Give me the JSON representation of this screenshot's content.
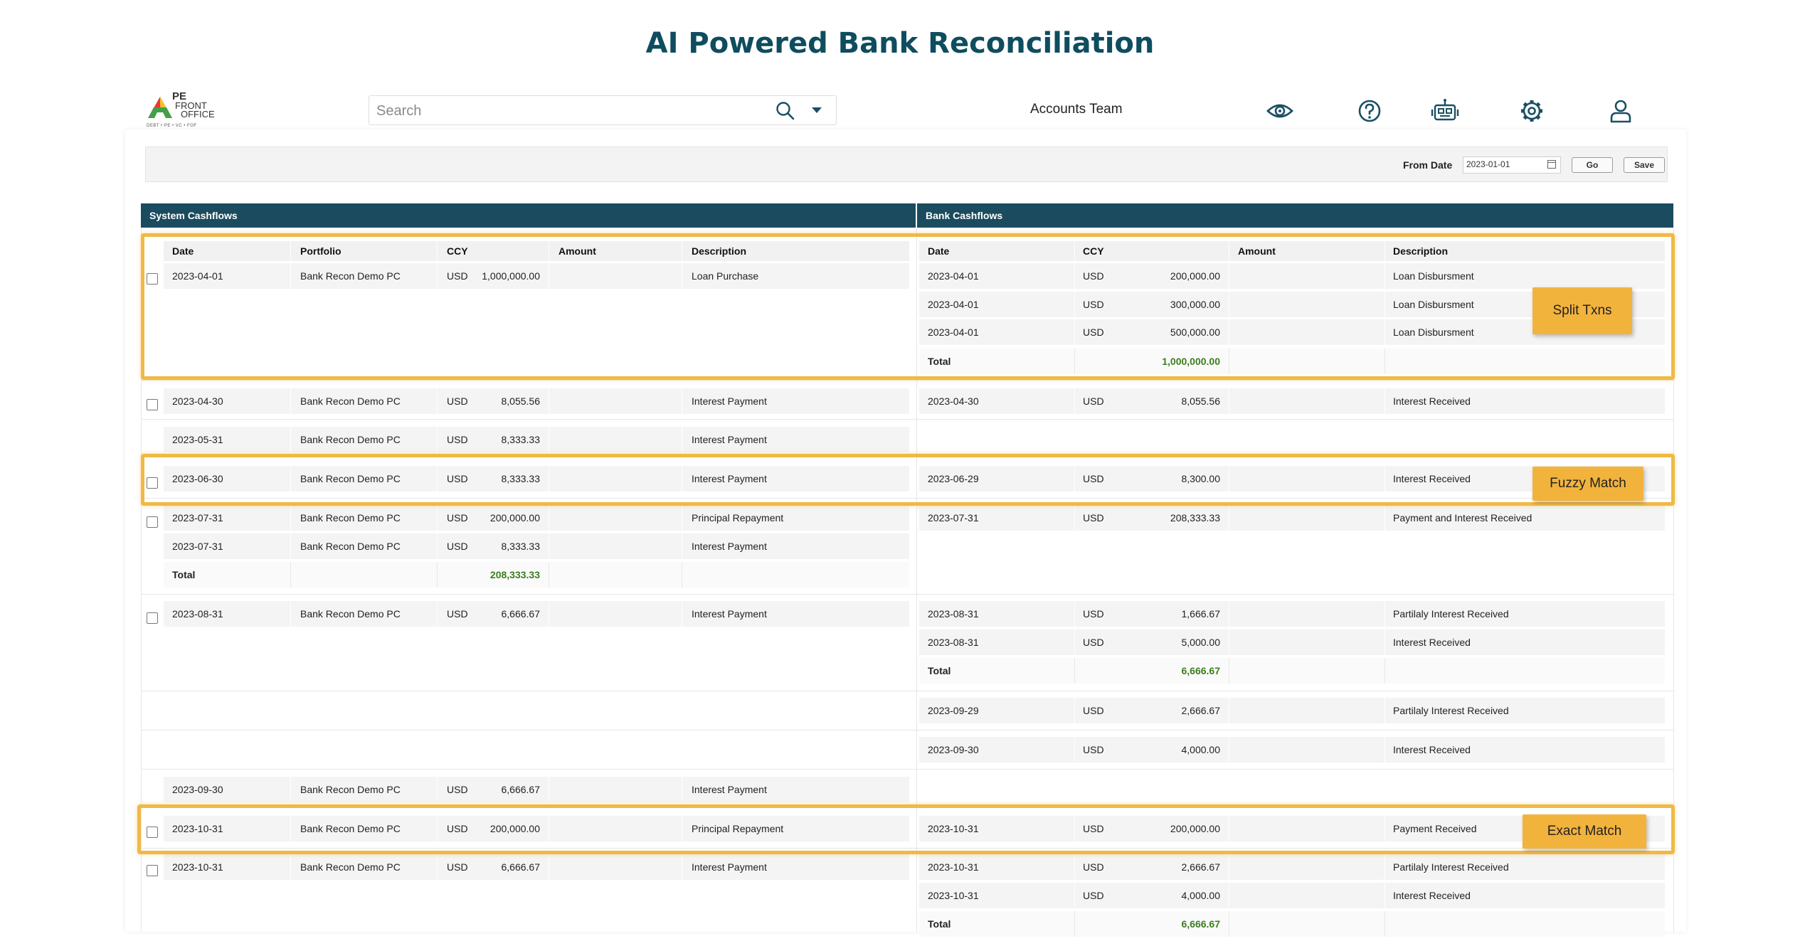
{
  "title": "AI Powered Bank Reconciliation",
  "logo": {
    "line1": "PE",
    "line2": "FRONT",
    "line3": "OFFICE",
    "tagline": "DEBT • PE • VC • FOF"
  },
  "search": {
    "placeholder": "Search"
  },
  "team": "Accounts Team",
  "toolbar": {
    "from_date_label": "From Date",
    "from_date_value": "2023-01-01",
    "go_label": "Go",
    "save_label": "Save"
  },
  "sections": {
    "system": "System Cashflows",
    "bank": "Bank Cashflows"
  },
  "system_columns": [
    "Date",
    "Portfolio",
    "CCY",
    "Amount",
    "Description"
  ],
  "bank_columns": [
    "Date",
    "CCY",
    "Amount",
    "Description"
  ],
  "system_rows": [
    {
      "date": "2023-04-01",
      "portfolio": "Bank Recon Demo PC",
      "ccy": "USD",
      "amount": "1,000,000.00",
      "desc": "Loan Purchase"
    },
    {
      "date": "2023-04-30",
      "portfolio": "Bank Recon Demo PC",
      "ccy": "USD",
      "amount": "8,055.56",
      "desc": "Interest Payment"
    },
    {
      "date": "2023-05-31",
      "portfolio": "Bank Recon Demo PC",
      "ccy": "USD",
      "amount": "8,333.33",
      "desc": "Interest Payment"
    },
    {
      "date": "2023-06-30",
      "portfolio": "Bank Recon Demo PC",
      "ccy": "USD",
      "amount": "8,333.33",
      "desc": "Interest Payment"
    },
    {
      "date": "2023-07-31",
      "portfolio": "Bank Recon Demo PC",
      "ccy": "USD",
      "amount": "200,000.00",
      "desc": "Principal Repayment"
    },
    {
      "date": "2023-07-31",
      "portfolio": "Bank Recon Demo PC",
      "ccy": "USD",
      "amount": "8,333.33",
      "desc": "Interest Payment"
    },
    {
      "date": "2023-08-31",
      "portfolio": "Bank Recon Demo PC",
      "ccy": "USD",
      "amount": "6,666.67",
      "desc": "Interest Payment"
    },
    {
      "date": "2023-09-30",
      "portfolio": "Bank Recon Demo PC",
      "ccy": "USD",
      "amount": "6,666.67",
      "desc": "Interest Payment"
    },
    {
      "date": "2023-10-31",
      "portfolio": "Bank Recon Demo PC",
      "ccy": "USD",
      "amount": "200,000.00",
      "desc": "Principal Repayment"
    },
    {
      "date": "2023-10-31",
      "portfolio": "Bank Recon Demo PC",
      "ccy": "USD",
      "amount": "6,666.67",
      "desc": "Interest Payment"
    }
  ],
  "system_totals": [
    {
      "label": "Total",
      "value": "208,333.33"
    }
  ],
  "bank_rows": [
    {
      "date": "2023-04-01",
      "ccy": "USD",
      "amount": "200,000.00",
      "desc": "Loan Disbursment"
    },
    {
      "date": "2023-04-01",
      "ccy": "USD",
      "amount": "300,000.00",
      "desc": "Loan Disbursment"
    },
    {
      "date": "2023-04-01",
      "ccy": "USD",
      "amount": "500,000.00",
      "desc": "Loan Disbursment"
    },
    {
      "date": "2023-04-30",
      "ccy": "USD",
      "amount": "8,055.56",
      "desc": "Interest Received"
    },
    {
      "date": "2023-06-29",
      "ccy": "USD",
      "amount": "8,300.00",
      "desc": "Interest Received"
    },
    {
      "date": "2023-07-31",
      "ccy": "USD",
      "amount": "208,333.33",
      "desc": "Payment and Interest Received"
    },
    {
      "date": "2023-08-31",
      "ccy": "USD",
      "amount": "1,666.67",
      "desc": "Partilaly Interest Received"
    },
    {
      "date": "2023-08-31",
      "ccy": "USD",
      "amount": "5,000.00",
      "desc": "Interest Received"
    },
    {
      "date": "2023-09-29",
      "ccy": "USD",
      "amount": "2,666.67",
      "desc": "Partilaly Interest Received"
    },
    {
      "date": "2023-09-30",
      "ccy": "USD",
      "amount": "4,000.00",
      "desc": "Interest Received"
    },
    {
      "date": "2023-10-31",
      "ccy": "USD",
      "amount": "200,000.00",
      "desc": "Payment Received"
    },
    {
      "date": "2023-10-31",
      "ccy": "USD",
      "amount": "2,666.67",
      "desc": "Partilaly Interest Received"
    },
    {
      "date": "2023-10-31",
      "ccy": "USD",
      "amount": "4,000.00",
      "desc": "Interest Received"
    }
  ],
  "bank_totals": [
    {
      "label": "Total",
      "value": "1,000,000.00"
    },
    {
      "label": "Total",
      "value": "6,666.67"
    },
    {
      "label": "Total",
      "value": "6,666.67"
    }
  ],
  "tags": {
    "split": "Split Txns",
    "fuzzy": "Fuzzy Match",
    "exact": "Exact Match"
  },
  "icons": [
    "eye-icon",
    "help-icon",
    "robot-icon",
    "gear-icon",
    "user-icon"
  ],
  "colors": {
    "title": "#0e4d5f",
    "header_bar": "#1a4b5e",
    "total_green": "#3c7d1f",
    "highlight": "#f0b945"
  }
}
